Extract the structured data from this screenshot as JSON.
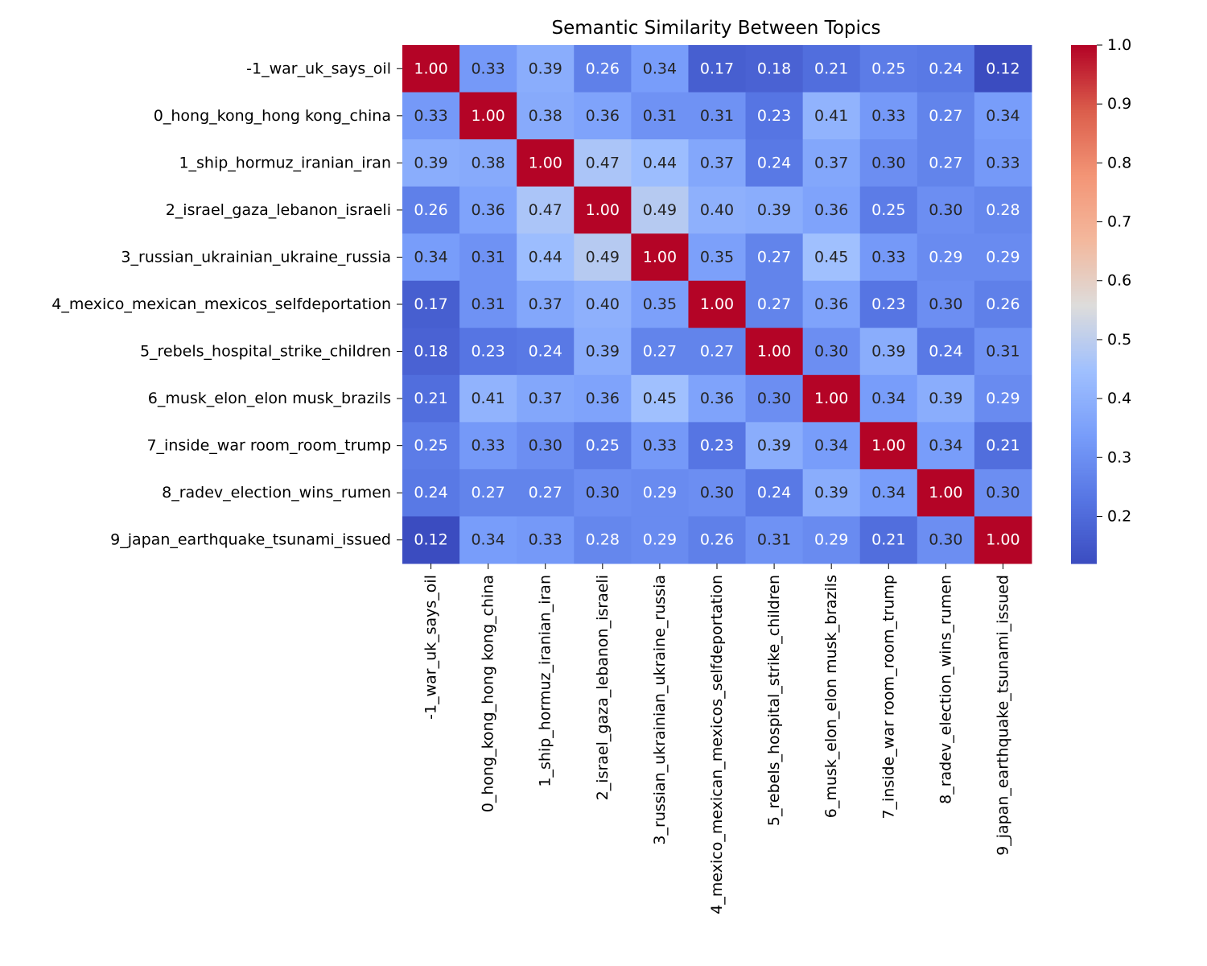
{
  "chart_data": {
    "type": "heatmap",
    "title": "Semantic Similarity Between Topics",
    "xlabel": "",
    "ylabel": "",
    "row_labels": [
      "-1_war_uk_says_oil",
      "0_hong_kong_hong kong_china",
      "1_ship_hormuz_iranian_iran",
      "2_israel_gaza_lebanon_israeli",
      "3_russian_ukrainian_ukraine_russia",
      "4_mexico_mexican_mexicos_selfdeportation",
      "5_rebels_hospital_strike_children",
      "6_musk_elon_elon musk_brazils",
      "7_inside_war room_room_trump",
      "8_radev_election_wins_rumen",
      "9_japan_earthquake_tsunami_issued"
    ],
    "col_labels": [
      "-1_war_uk_says_oil",
      "0_hong_kong_hong kong_china",
      "1_ship_hormuz_iranian_iran",
      "2_israel_gaza_lebanon_israeli",
      "3_russian_ukrainian_ukraine_russia",
      "4_mexico_mexican_mexicos_selfdeportation",
      "5_rebels_hospital_strike_children",
      "6_musk_elon_elon musk_brazils",
      "7_inside_war room_room_trump",
      "8_radev_election_wins_rumen",
      "9_japan_earthquake_tsunami_issued"
    ],
    "values": [
      [
        1.0,
        0.33,
        0.39,
        0.26,
        0.34,
        0.17,
        0.18,
        0.21,
        0.25,
        0.24,
        0.12
      ],
      [
        0.33,
        1.0,
        0.38,
        0.36,
        0.31,
        0.31,
        0.23,
        0.41,
        0.33,
        0.27,
        0.34
      ],
      [
        0.39,
        0.38,
        1.0,
        0.47,
        0.44,
        0.37,
        0.24,
        0.37,
        0.3,
        0.27,
        0.33
      ],
      [
        0.26,
        0.36,
        0.47,
        1.0,
        0.49,
        0.4,
        0.39,
        0.36,
        0.25,
        0.3,
        0.28
      ],
      [
        0.34,
        0.31,
        0.44,
        0.49,
        1.0,
        0.35,
        0.27,
        0.45,
        0.33,
        0.29,
        0.29
      ],
      [
        0.17,
        0.31,
        0.37,
        0.4,
        0.35,
        1.0,
        0.27,
        0.36,
        0.23,
        0.3,
        0.26
      ],
      [
        0.18,
        0.23,
        0.24,
        0.39,
        0.27,
        0.27,
        1.0,
        0.3,
        0.39,
        0.24,
        0.31
      ],
      [
        0.21,
        0.41,
        0.37,
        0.36,
        0.45,
        0.36,
        0.3,
        1.0,
        0.34,
        0.39,
        0.29
      ],
      [
        0.25,
        0.33,
        0.3,
        0.25,
        0.33,
        0.23,
        0.39,
        0.34,
        1.0,
        0.34,
        0.21
      ],
      [
        0.24,
        0.27,
        0.27,
        0.3,
        0.29,
        0.3,
        0.24,
        0.39,
        0.34,
        1.0,
        0.3
      ],
      [
        0.12,
        0.34,
        0.33,
        0.28,
        0.29,
        0.26,
        0.31,
        0.29,
        0.21,
        0.3,
        1.0
      ]
    ],
    "value_format": "2 decimals",
    "colormap": "coolwarm",
    "vmin": 0.12,
    "vmax": 1.0,
    "colorbar_ticks": [
      "0.2",
      "0.3",
      "0.4",
      "0.5",
      "0.6",
      "0.7",
      "0.8",
      "0.9",
      "1.0"
    ],
    "grid": false,
    "legend": "colorbar-right"
  }
}
